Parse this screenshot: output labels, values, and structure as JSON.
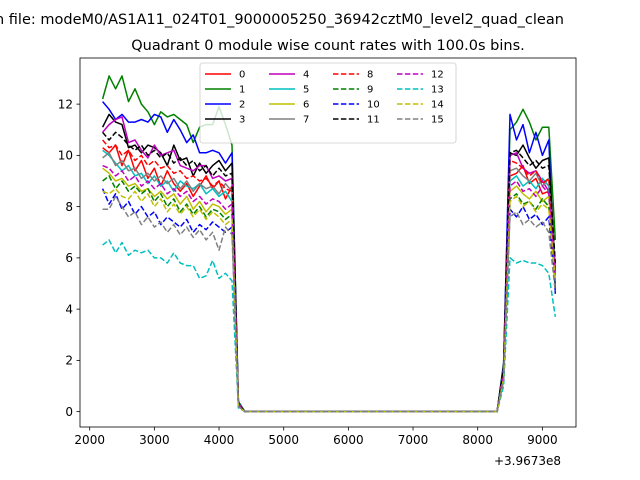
{
  "suptitle": "n file: modeM0/AS1A11_024T01_9000005250_36942cztM0_level2_quad_clean",
  "chart_data": {
    "type": "line",
    "title": "Quadrant 0 module wise count rates with 100.0s bins.",
    "xlabel": "",
    "ylabel": "",
    "x_offset_label": "+3.9673e8",
    "xlim": [
      1850,
      9520
    ],
    "ylim": [
      -0.6,
      13.8
    ],
    "xticks": [
      2000,
      3000,
      4000,
      5000,
      6000,
      7000,
      8000,
      9000
    ],
    "yticks": [
      0,
      2,
      4,
      6,
      8,
      10,
      12
    ],
    "grid": false,
    "legend": {
      "placement": "upper-center",
      "ncol": 4
    },
    "x": [
      2200,
      2300,
      2400,
      2500,
      2600,
      2700,
      2800,
      2900,
      3000,
      3100,
      3200,
      3300,
      3400,
      3500,
      3600,
      3700,
      3800,
      3900,
      4000,
      4100,
      4200,
      4300,
      4400,
      4500,
      4600,
      4700,
      4800,
      4900,
      5000,
      5100,
      5200,
      5300,
      5400,
      5500,
      5600,
      5700,
      5800,
      5900,
      6000,
      6100,
      6200,
      6300,
      6400,
      6500,
      6600,
      6700,
      6800,
      6900,
      7000,
      7100,
      7200,
      7300,
      7400,
      7500,
      7600,
      7700,
      7800,
      7900,
      8000,
      8100,
      8200,
      8300,
      8400,
      8500,
      8600,
      8700,
      8800,
      8900,
      9000,
      9100,
      9200
    ],
    "series": [
      {
        "name": "0",
        "color": "#ff0000",
        "dash": false,
        "values": [
          10.3,
          10.1,
          10.4,
          9.6,
          10.2,
          9.4,
          9.8,
          9.1,
          9.5,
          8.8,
          9.4,
          8.9,
          8.6,
          8.9,
          8.4,
          8.8,
          9.2,
          8.7,
          9.0,
          8.3,
          8.8,
          0.25,
          0,
          0,
          0,
          0,
          0,
          0,
          0,
          0,
          0,
          0,
          0,
          0,
          0,
          0,
          0,
          0,
          0,
          0,
          0,
          0,
          0,
          0,
          0,
          0,
          0,
          0,
          0,
          0,
          0,
          0,
          0,
          0,
          0,
          0,
          0,
          0,
          0,
          0,
          0,
          0,
          1.5,
          9.2,
          9.3,
          9.6,
          8.9,
          9.1,
          8.5,
          8.6,
          5.6
        ]
      },
      {
        "name": "1",
        "color": "#008000",
        "dash": false,
        "values": [
          12.2,
          13.1,
          12.6,
          13.1,
          12.1,
          12.6,
          12.0,
          11.7,
          11.2,
          11.7,
          11.5,
          11.6,
          11.4,
          11.2,
          10.5,
          11.1,
          11.2,
          11.2,
          11.9,
          11.2,
          10.4,
          0.4,
          0,
          0,
          0,
          0,
          0,
          0,
          0,
          0,
          0,
          0,
          0,
          0,
          0,
          0,
          0,
          0,
          0,
          0,
          0,
          0,
          0,
          0,
          0,
          0,
          0,
          0,
          0,
          0,
          0,
          0,
          0,
          0,
          0,
          0,
          0,
          0,
          0,
          0,
          0,
          0,
          1.9,
          11.0,
          11.3,
          11.8,
          11.3,
          10.6,
          11.1,
          11.1,
          6.7
        ]
      },
      {
        "name": "2",
        "color": "#0000ff",
        "dash": false,
        "values": [
          12.1,
          11.8,
          11.4,
          11.6,
          11.3,
          11.3,
          11.4,
          11.3,
          11.6,
          11.5,
          10.9,
          11.4,
          11.0,
          10.5,
          10.8,
          10.1,
          10.1,
          10.2,
          10.1,
          9.7,
          10.1,
          0.35,
          0,
          0,
          0,
          0,
          0,
          0,
          0,
          0,
          0,
          0,
          0,
          0,
          0,
          0,
          0,
          0,
          0,
          0,
          0,
          0,
          0,
          0,
          0,
          0,
          0,
          0,
          0,
          0,
          0,
          0,
          0,
          0,
          0,
          0,
          0,
          0,
          0,
          0,
          0,
          0,
          1.8,
          11.6,
          10.6,
          11.2,
          10.1,
          10.9,
          10.0,
          10.6,
          4.6
        ]
      },
      {
        "name": "3",
        "color": "#000000",
        "dash": false,
        "values": [
          11.1,
          11.6,
          11.3,
          11.2,
          10.3,
          10.4,
          10.1,
          10.4,
          10.3,
          10.1,
          9.6,
          10.4,
          9.8,
          9.9,
          9.2,
          9.7,
          9.3,
          9.6,
          9.8,
          9.4,
          9.7,
          0.3,
          0,
          0,
          0,
          0,
          0,
          0,
          0,
          0,
          0,
          0,
          0,
          0,
          0,
          0,
          0,
          0,
          0,
          0,
          0,
          0,
          0,
          0,
          0,
          0,
          0,
          0,
          0,
          0,
          0,
          0,
          0,
          0,
          0,
          0,
          0,
          0,
          0,
          0,
          0,
          0,
          1.7,
          10.1,
          10.0,
          10.4,
          9.9,
          9.5,
          9.8,
          9.9,
          5.6
        ]
      },
      {
        "name": "4",
        "color": "#bf00bf",
        "dash": false,
        "values": [
          10.9,
          11.2,
          11.4,
          11.5,
          10.5,
          10.6,
          10.2,
          9.9,
          10.4,
          10.0,
          10.1,
          10.2,
          9.6,
          9.5,
          9.4,
          9.6,
          9.6,
          9.1,
          9.2,
          9.0,
          9.1,
          0.3,
          0,
          0,
          0,
          0,
          0,
          0,
          0,
          0,
          0,
          0,
          0,
          0,
          0,
          0,
          0,
          0,
          0,
          0,
          0,
          0,
          0,
          0,
          0,
          0,
          0,
          0,
          0,
          0,
          0,
          0,
          0,
          0,
          0,
          0,
          0,
          0,
          0,
          0,
          0,
          0,
          1.6,
          10.0,
          10.1,
          9.5,
          9.3,
          9.4,
          9.0,
          8.6,
          5.5
        ]
      },
      {
        "name": "5",
        "color": "#00bfbf",
        "dash": false,
        "values": [
          10.2,
          10.0,
          9.7,
          9.4,
          9.6,
          9.2,
          9.3,
          8.9,
          9.2,
          8.8,
          9.0,
          8.6,
          9.0,
          8.8,
          8.7,
          8.9,
          8.5,
          8.7,
          8.4,
          8.6,
          8.2,
          0.25,
          0,
          0,
          0,
          0,
          0,
          0,
          0,
          0,
          0,
          0,
          0,
          0,
          0,
          0,
          0,
          0,
          0,
          0,
          0,
          0,
          0,
          0,
          0,
          0,
          0,
          0,
          0,
          0,
          0,
          0,
          0,
          0,
          0,
          0,
          0,
          0,
          0,
          0,
          0,
          0,
          1.5,
          9.0,
          9.2,
          8.8,
          9.0,
          8.7,
          9.1,
          8.8,
          5.4
        ]
      },
      {
        "name": "6",
        "color": "#bfbf00",
        "dash": false,
        "values": [
          9.5,
          9.3,
          9.0,
          9.1,
          8.8,
          8.9,
          8.6,
          8.7,
          8.4,
          8.6,
          8.3,
          8.5,
          8.1,
          8.4,
          7.9,
          8.2,
          7.8,
          8.1,
          8.0,
          7.7,
          7.9,
          0.25,
          0,
          0,
          0,
          0,
          0,
          0,
          0,
          0,
          0,
          0,
          0,
          0,
          0,
          0,
          0,
          0,
          0,
          0,
          0,
          0,
          0,
          0,
          0,
          0,
          0,
          0,
          0,
          0,
          0,
          0,
          0,
          0,
          0,
          0,
          0,
          0,
          0,
          0,
          0,
          0,
          1.4,
          8.6,
          8.8,
          8.5,
          8.3,
          8.6,
          8.2,
          8.4,
          5.2
        ]
      },
      {
        "name": "7",
        "color": "#808080",
        "dash": false,
        "values": [
          9.9,
          10.1,
          9.6,
          9.8,
          9.4,
          9.5,
          9.1,
          9.3,
          9.0,
          9.2,
          8.9,
          9.1,
          8.7,
          9.0,
          8.6,
          8.9,
          8.7,
          8.8,
          8.5,
          8.9,
          8.6,
          0.3,
          0,
          0,
          0,
          0,
          0,
          0,
          0,
          0,
          0,
          0,
          0,
          0,
          0,
          0,
          0,
          0,
          0,
          0,
          0,
          0,
          0,
          0,
          0,
          0,
          0,
          0,
          0,
          0,
          0,
          0,
          0,
          0,
          0,
          0,
          0,
          0,
          0,
          0,
          0,
          0,
          1.6,
          9.4,
          9.5,
          9.2,
          9.0,
          9.3,
          8.8,
          9.1,
          5.7
        ]
      },
      {
        "name": "8",
        "color": "#ff0000",
        "dash": true,
        "values": [
          10.6,
          10.3,
          10.4,
          10.0,
          10.2,
          9.8,
          10.0,
          9.6,
          9.8,
          9.5,
          9.6,
          9.3,
          9.4,
          9.1,
          9.2,
          9.0,
          9.1,
          8.8,
          9.0,
          8.7,
          8.6,
          0.3,
          0,
          0,
          0,
          0,
          0,
          0,
          0,
          0,
          0,
          0,
          0,
          0,
          0,
          0,
          0,
          0,
          0,
          0,
          0,
          0,
          0,
          0,
          0,
          0,
          0,
          0,
          0,
          0,
          0,
          0,
          0,
          0,
          0,
          0,
          0,
          0,
          0,
          0,
          0,
          0,
          1.6,
          9.8,
          9.7,
          9.5,
          9.2,
          9.4,
          8.9,
          9.1,
          5.5
        ]
      },
      {
        "name": "9",
        "color": "#008000",
        "dash": true,
        "values": [
          9.0,
          9.2,
          8.7,
          9.0,
          8.6,
          8.8,
          8.5,
          8.7,
          8.2,
          8.5,
          8.0,
          8.3,
          7.8,
          8.1,
          7.7,
          8.0,
          7.6,
          7.9,
          7.8,
          7.5,
          7.7,
          0.25,
          0,
          0,
          0,
          0,
          0,
          0,
          0,
          0,
          0,
          0,
          0,
          0,
          0,
          0,
          0,
          0,
          0,
          0,
          0,
          0,
          0,
          0,
          0,
          0,
          0,
          0,
          0,
          0,
          0,
          0,
          0,
          0,
          0,
          0,
          0,
          0,
          0,
          0,
          0,
          0,
          1.3,
          8.3,
          8.5,
          8.1,
          8.2,
          7.9,
          8.3,
          8.0,
          5.0
        ]
      },
      {
        "name": "10",
        "color": "#0000ff",
        "dash": true,
        "values": [
          8.7,
          8.1,
          8.5,
          7.9,
          8.2,
          7.7,
          8.0,
          7.6,
          7.8,
          7.3,
          7.6,
          7.4,
          7.2,
          7.5,
          7.0,
          7.3,
          7.1,
          7.4,
          7.2,
          7.0,
          7.2,
          0.2,
          0,
          0,
          0,
          0,
          0,
          0,
          0,
          0,
          0,
          0,
          0,
          0,
          0,
          0,
          0,
          0,
          0,
          0,
          0,
          0,
          0,
          0,
          0,
          0,
          0,
          0,
          0,
          0,
          0,
          0,
          0,
          0,
          0,
          0,
          0,
          0,
          0,
          0,
          0,
          0,
          1.2,
          7.9,
          7.6,
          8.0,
          7.5,
          7.7,
          7.3,
          7.6,
          4.8
        ]
      },
      {
        "name": "11",
        "color": "#000000",
        "dash": true,
        "values": [
          10.9,
          10.6,
          10.9,
          10.7,
          10.4,
          10.2,
          10.4,
          10.0,
          10.2,
          9.9,
          10.1,
          9.7,
          9.9,
          9.6,
          9.8,
          9.4,
          9.6,
          9.2,
          9.5,
          9.2,
          9.3,
          0.3,
          0,
          0,
          0,
          0,
          0,
          0,
          0,
          0,
          0,
          0,
          0,
          0,
          0,
          0,
          0,
          0,
          0,
          0,
          0,
          0,
          0,
          0,
          0,
          0,
          0,
          0,
          0,
          0,
          0,
          0,
          0,
          0,
          0,
          0,
          0,
          0,
          0,
          0,
          0,
          0,
          1.7,
          10.1,
          10.2,
          9.9,
          9.6,
          9.8,
          9.5,
          9.6,
          5.8
        ]
      },
      {
        "name": "12",
        "color": "#bf00bf",
        "dash": true,
        "values": [
          9.6,
          9.5,
          9.2,
          9.4,
          9.0,
          9.2,
          8.8,
          9.0,
          8.7,
          8.9,
          8.5,
          8.7,
          8.4,
          8.6,
          8.2,
          8.4,
          8.1,
          8.3,
          8.2,
          7.9,
          8.1,
          0.25,
          0,
          0,
          0,
          0,
          0,
          0,
          0,
          0,
          0,
          0,
          0,
          0,
          0,
          0,
          0,
          0,
          0,
          0,
          0,
          0,
          0,
          0,
          0,
          0,
          0,
          0,
          0,
          0,
          0,
          0,
          0,
          0,
          0,
          0,
          0,
          0,
          0,
          0,
          0,
          0,
          1.4,
          8.8,
          9.0,
          8.6,
          8.7,
          8.4,
          8.8,
          8.5,
          5.3
        ]
      },
      {
        "name": "13",
        "color": "#00bfbf",
        "dash": true,
        "values": [
          6.5,
          6.7,
          6.2,
          6.6,
          6.1,
          6.3,
          6.2,
          6.3,
          6.0,
          6.0,
          5.8,
          6.2,
          5.8,
          5.7,
          5.7,
          5.2,
          5.3,
          5.9,
          5.2,
          5.4,
          5.1,
          0.15,
          0,
          0,
          0,
          0,
          0,
          0,
          0,
          0,
          0,
          0,
          0,
          0,
          0,
          0,
          0,
          0,
          0,
          0,
          0,
          0,
          0,
          0,
          0,
          0,
          0,
          0,
          0,
          0,
          0,
          0,
          0,
          0,
          0,
          0,
          0,
          0,
          0,
          0,
          0,
          0,
          1.0,
          6.0,
          5.8,
          5.9,
          5.8,
          5.8,
          5.7,
          5.4,
          3.7
        ]
      },
      {
        "name": "14",
        "color": "#bfbf00",
        "dash": true,
        "values": [
          8.6,
          8.5,
          8.7,
          8.4,
          8.3,
          8.6,
          8.2,
          8.5,
          8.0,
          8.3,
          7.8,
          8.1,
          7.7,
          8.0,
          7.6,
          7.9,
          7.5,
          7.8,
          7.6,
          7.3,
          7.5,
          0.2,
          0,
          0,
          0,
          0,
          0,
          0,
          0,
          0,
          0,
          0,
          0,
          0,
          0,
          0,
          0,
          0,
          0,
          0,
          0,
          0,
          0,
          0,
          0,
          0,
          0,
          0,
          0,
          0,
          0,
          0,
          0,
          0,
          0,
          0,
          0,
          0,
          0,
          0,
          0,
          0,
          1.3,
          8.2,
          8.4,
          8.0,
          8.2,
          7.8,
          8.1,
          7.9,
          5.1
        ]
      },
      {
        "name": "15",
        "color": "#808080",
        "dash": true,
        "values": [
          7.9,
          7.9,
          8.4,
          8.0,
          7.6,
          7.8,
          7.3,
          7.6,
          7.2,
          7.4,
          7.0,
          7.3,
          6.9,
          7.2,
          6.8,
          7.1,
          6.7,
          7.0,
          6.3,
          7.2,
          6.9,
          0.2,
          0,
          0,
          0,
          0,
          0,
          0,
          0,
          0,
          0,
          0,
          0,
          0,
          0,
          0,
          0,
          0,
          0,
          0,
          0,
          0,
          0,
          0,
          0,
          0,
          0,
          0,
          0,
          0,
          0,
          0,
          0,
          0,
          0,
          0,
          0,
          0,
          0,
          0,
          0,
          0,
          1.2,
          7.6,
          7.8,
          7.3,
          7.5,
          7.2,
          7.4,
          7.0,
          4.7
        ]
      }
    ]
  }
}
